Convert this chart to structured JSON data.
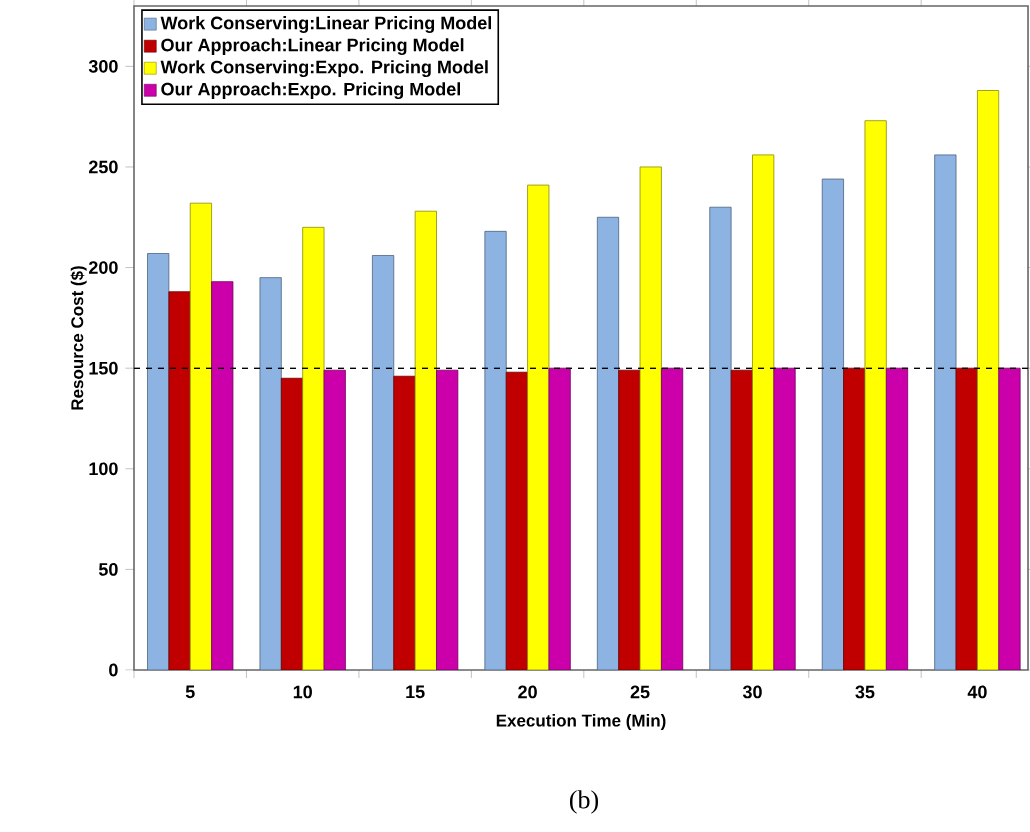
{
  "chart_data": {
    "type": "bar",
    "xlabel": "Execution Time (Min)",
    "ylabel": "Resource Cost ($)",
    "categories": [
      "5",
      "10",
      "15",
      "20",
      "25",
      "30",
      "35",
      "40"
    ],
    "series": [
      {
        "name": "Work Conserving:Linear Pricing Model",
        "color": "#8db3e2",
        "values": [
          207,
          195,
          206,
          218,
          225,
          230,
          244,
          256
        ]
      },
      {
        "name": "Our Approach:Linear Pricing Model",
        "color": "#c00000",
        "values": [
          188,
          145,
          146,
          148,
          149,
          149,
          150,
          150
        ]
      },
      {
        "name": "Work Conserving:Expo. Pricing Model",
        "color": "#ffff00",
        "values": [
          232,
          220,
          228,
          241,
          250,
          256,
          273,
          288
        ]
      },
      {
        "name": "Our Approach:Expo. Pricing Model",
        "color": "#cc00aa",
        "values": [
          193,
          149,
          149,
          150,
          150,
          150,
          150,
          150
        ]
      }
    ],
    "ylim": [
      0,
      330
    ],
    "yticks": [
      0,
      50,
      100,
      150,
      200,
      250,
      300
    ],
    "ref_lines": [
      {
        "axis": "y",
        "value": 150,
        "color": "#000000",
        "line_style": "dashed"
      }
    ],
    "legend": "top left",
    "grid": false,
    "annotations": [
      "(b)"
    ]
  }
}
